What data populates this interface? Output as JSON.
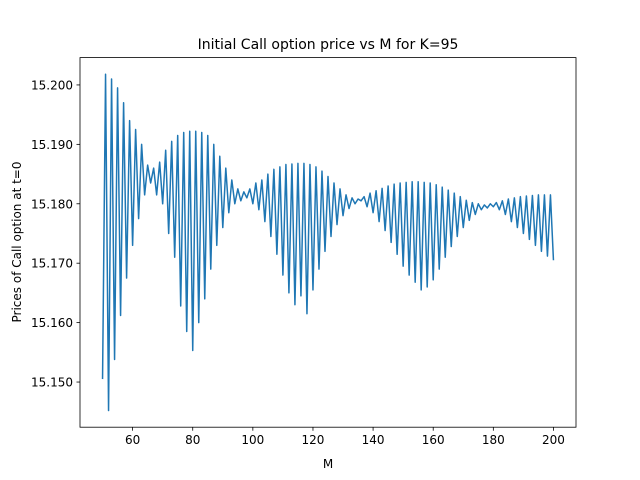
{
  "chart_data": {
    "type": "line",
    "title": "Initial Call option price vs M for K=95",
    "x_label": "M",
    "y_label": "Prices of Call option at t=0",
    "x": [
      50,
      51,
      52,
      53,
      54,
      55,
      56,
      57,
      58,
      59,
      60,
      61,
      62,
      63,
      64,
      65,
      66,
      67,
      68,
      69,
      70,
      71,
      72,
      73,
      74,
      75,
      76,
      77,
      78,
      79,
      80,
      81,
      82,
      83,
      84,
      85,
      86,
      87,
      88,
      89,
      90,
      91,
      92,
      93,
      94,
      95,
      96,
      97,
      98,
      99,
      100,
      101,
      102,
      103,
      104,
      105,
      106,
      107,
      108,
      109,
      110,
      111,
      112,
      113,
      114,
      115,
      116,
      117,
      118,
      119,
      120,
      121,
      122,
      123,
      124,
      125,
      126,
      127,
      128,
      129,
      130,
      131,
      132,
      133,
      134,
      135,
      136,
      137,
      138,
      139,
      140,
      141,
      142,
      143,
      144,
      145,
      146,
      147,
      148,
      149,
      150,
      151,
      152,
      153,
      154,
      155,
      156,
      157,
      158,
      159,
      160,
      161,
      162,
      163,
      164,
      165,
      166,
      167,
      168,
      169,
      170,
      171,
      172,
      173,
      174,
      175,
      176,
      177,
      178,
      179,
      180,
      181,
      182,
      183,
      184,
      185,
      186,
      187,
      188,
      189,
      190,
      191,
      192,
      193,
      194,
      195,
      196,
      197,
      198,
      199,
      200
    ],
    "series": [
      {
        "color": "#1f77b4",
        "values": [
          15.1505,
          15.2018,
          15.1452,
          15.201,
          15.1538,
          15.1995,
          15.1612,
          15.197,
          15.1675,
          15.194,
          15.173,
          15.1925,
          15.1775,
          15.19,
          15.1815,
          15.1865,
          15.1835,
          15.186,
          15.1815,
          15.187,
          15.18,
          15.189,
          15.175,
          15.1905,
          15.171,
          15.1915,
          15.1628,
          15.192,
          15.1585,
          15.1922,
          15.1553,
          15.1922,
          15.16,
          15.192,
          15.164,
          15.1915,
          15.169,
          15.19,
          15.173,
          15.188,
          15.176,
          15.186,
          15.1785,
          15.184,
          15.18,
          15.1825,
          15.1805,
          15.182,
          15.181,
          15.1825,
          15.18,
          15.1835,
          15.179,
          15.184,
          15.177,
          15.185,
          15.1745,
          15.1858,
          15.1715,
          15.1862,
          15.168,
          15.1866,
          15.165,
          15.1867,
          15.163,
          15.1868,
          15.1645,
          15.1868,
          15.1615,
          15.1866,
          15.1655,
          15.1862,
          15.169,
          15.1855,
          15.172,
          15.1846,
          15.1745,
          15.1835,
          15.1765,
          15.1825,
          15.178,
          15.1815,
          15.1792,
          15.181,
          15.18,
          15.1808,
          15.1805,
          15.1812,
          15.1795,
          15.1818,
          15.1785,
          15.1822,
          15.177,
          15.1826,
          15.1755,
          15.183,
          15.1735,
          15.1833,
          15.1715,
          15.1835,
          15.1695,
          15.1836,
          15.168,
          15.1837,
          15.1668,
          15.1837,
          15.1655,
          15.1836,
          15.166,
          15.1835,
          15.1672,
          15.1832,
          15.169,
          15.1828,
          15.171,
          15.1823,
          15.1728,
          15.1818,
          15.1745,
          15.1812,
          15.176,
          15.1806,
          15.1772,
          15.1802,
          15.1782,
          15.18,
          15.179,
          15.1798,
          15.1793,
          15.18,
          15.1795,
          15.1802,
          15.179,
          15.1805,
          15.1782,
          15.1808,
          15.177,
          15.181,
          15.176,
          15.1812,
          15.175,
          15.1813,
          15.174,
          15.1814,
          15.173,
          15.1815,
          15.172,
          15.1815,
          15.1712,
          15.1815,
          15.1705
        ]
      }
    ],
    "xlim": [
      42.5,
      207.5
    ],
    "ylim": [
      15.1424,
      15.2046
    ],
    "xticks": [
      60,
      80,
      100,
      120,
      140,
      160,
      180,
      200
    ],
    "yticks": [
      {
        "value": 15.15,
        "label": "15.150"
      },
      {
        "value": 15.16,
        "label": "15.160"
      },
      {
        "value": 15.17,
        "label": "15.170"
      },
      {
        "value": 15.18,
        "label": "15.180"
      },
      {
        "value": 15.19,
        "label": "15.190"
      },
      {
        "value": 15.2,
        "label": "15.200"
      }
    ]
  }
}
